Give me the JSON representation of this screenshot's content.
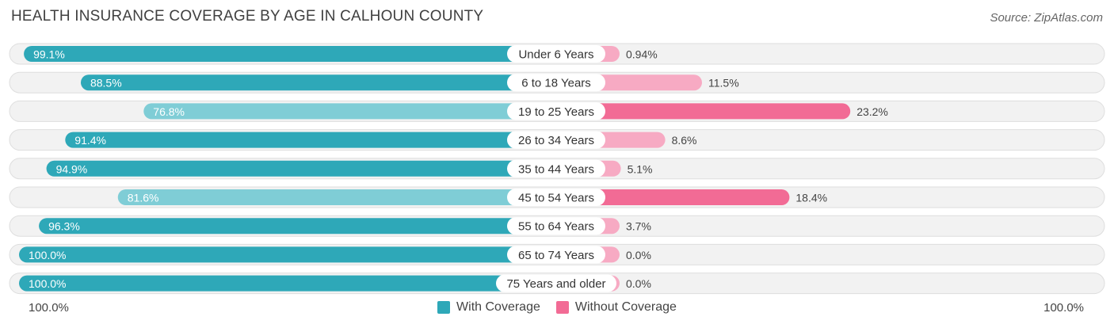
{
  "title": "HEALTH INSURANCE COVERAGE BY AGE IN CALHOUN COUNTY",
  "source": "Source: ZipAtlas.com",
  "colors": {
    "with_coverage": "#2ea8b8",
    "with_coverage_light": "#7fcdd6",
    "without_coverage": "#f26b95",
    "without_coverage_light": "#f7aac3",
    "row_bg": "#f2f2f2",
    "row_border": "#dedede"
  },
  "chart_data": {
    "type": "bar",
    "orientation": "horizontal-diverging",
    "title": "HEALTH INSURANCE COVERAGE BY AGE IN CALHOUN COUNTY",
    "categories": [
      "Under 6 Years",
      "6 to 18 Years",
      "19 to 25 Years",
      "26 to 34 Years",
      "35 to 44 Years",
      "45 to 54 Years",
      "55 to 64 Years",
      "65 to 74 Years",
      "75 Years and older"
    ],
    "series": [
      {
        "name": "With Coverage",
        "values": [
          99.1,
          88.5,
          76.8,
          91.4,
          94.9,
          81.6,
          96.3,
          100.0,
          100.0
        ],
        "labels": [
          "99.1%",
          "88.5%",
          "76.8%",
          "91.4%",
          "94.9%",
          "81.6%",
          "96.3%",
          "100.0%",
          "100.0%"
        ]
      },
      {
        "name": "Without Coverage",
        "values": [
          0.94,
          11.5,
          23.2,
          8.6,
          5.1,
          18.4,
          3.7,
          0.0,
          0.0
        ],
        "labels": [
          "0.94%",
          "11.5%",
          "23.2%",
          "8.6%",
          "5.1%",
          "18.4%",
          "3.7%",
          "0.0%",
          "0.0%"
        ]
      }
    ],
    "axis_left_label": "100.0%",
    "axis_right_label": "100.0%",
    "legend": [
      "With Coverage",
      "Without Coverage"
    ]
  }
}
